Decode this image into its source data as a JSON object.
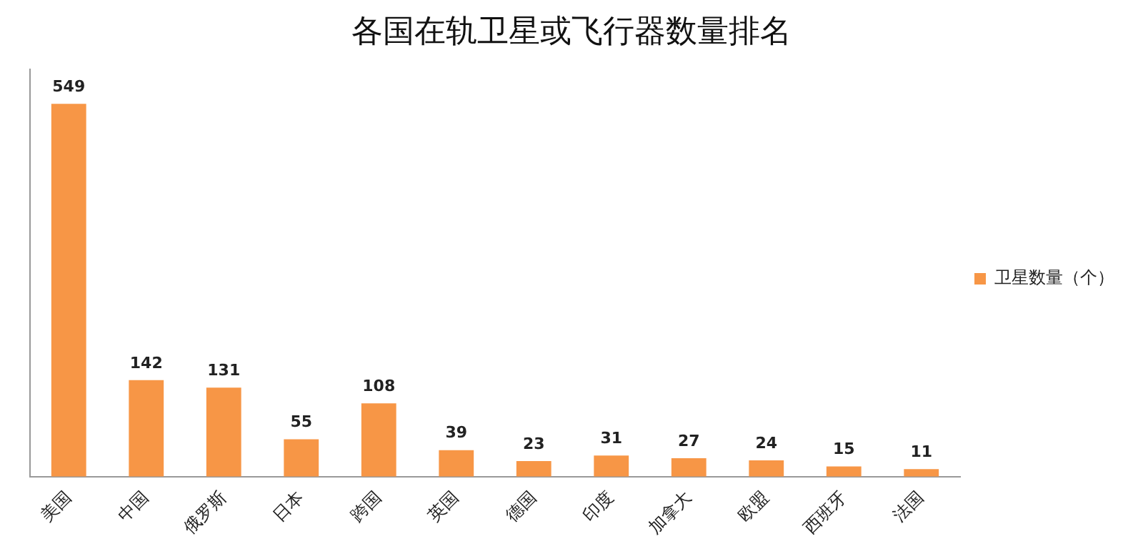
{
  "chart_data": {
    "type": "bar",
    "title": "各国在轨卫星或飞行器数量排名",
    "categories": [
      "美国",
      "中国",
      "俄罗斯",
      "日本",
      "跨国",
      "英国",
      "德国",
      "印度",
      "加拿大",
      "欧盟",
      "西班牙",
      "法国"
    ],
    "series": [
      {
        "name": "卫星数量（个）",
        "color": "#f79646",
        "values": [
          549,
          142,
          131,
          55,
          108,
          39,
          23,
          31,
          27,
          24,
          15,
          11
        ]
      }
    ],
    "ylim": [
      0,
      600
    ],
    "tick_labels": "x",
    "data_labels": true,
    "grid": false,
    "legend": "right"
  }
}
